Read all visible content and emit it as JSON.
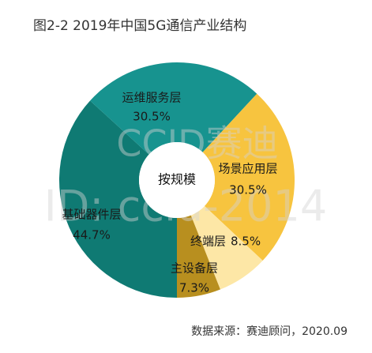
{
  "chart_data": {
    "type": "donut",
    "title": "图2-2  2019年中国5G通信产业结构",
    "center_label": "按规模",
    "source": "数据来源：赛迪顾问，2020.09",
    "watermark": [
      "CCID赛迪",
      "ID: ccid-2014"
    ],
    "categories": [
      "基础器件层",
      "运维服务层",
      "场景应用层",
      "终端层",
      "主设备层"
    ],
    "values": [
      44.7,
      30.5,
      30.5,
      8.5,
      7.3
    ],
    "value_labels": [
      "44.7%",
      "30.5%",
      "30.5%",
      "8.5%",
      "7.3%"
    ],
    "colors": [
      "#0f7a73",
      "#17938f",
      "#f7c43f",
      "#fde7a6",
      "#b88f1f"
    ]
  }
}
